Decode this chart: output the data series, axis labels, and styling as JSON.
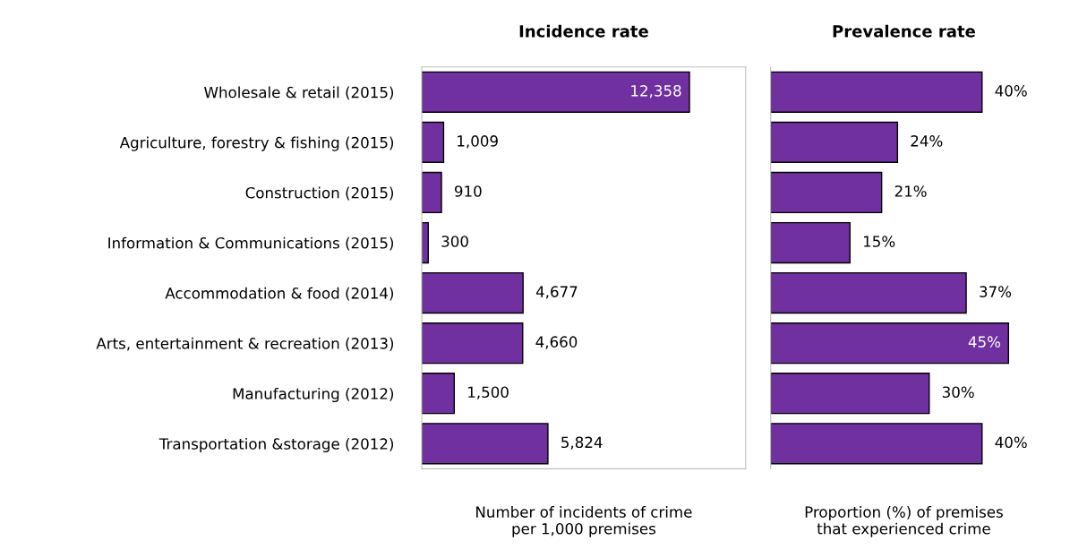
{
  "chart_data": [
    {
      "type": "bar",
      "orientation": "horizontal",
      "title": "Incidence rate",
      "xlabel": "Number of incidents of crime\nper 1,000 premises",
      "categories": [
        "Wholesale & retail (2015)",
        "Agriculture, forestry & fishing (2015)",
        "Construction (2015)",
        "Information & Communications (2015)",
        "Accommodation & food (2014)",
        "Arts, entertainment & recreation (2013)",
        "Manufacturing (2012)",
        "Transportation &storage (2012)"
      ],
      "values": [
        12358,
        1009,
        910,
        300,
        4677,
        4660,
        1500,
        5824
      ],
      "value_labels": [
        "12,358",
        "1,009",
        "910",
        "300",
        "4,677",
        "4,660",
        "1,500",
        "5,824"
      ],
      "color": "#7030a0",
      "tick_labels": "y"
    },
    {
      "type": "bar",
      "orientation": "horizontal",
      "title": "Prevalence rate",
      "xlabel": "Proportion (%) of premises\nthat experienced crime",
      "categories": [
        null,
        null,
        null,
        null,
        null,
        null,
        null,
        null
      ],
      "values": [
        40,
        24,
        21,
        15,
        37,
        45,
        30,
        40
      ],
      "value_labels": [
        "40%",
        "24%",
        "21%",
        "15%",
        "37%",
        "45%",
        "30%",
        "40%"
      ],
      "color": "#7030a0"
    }
  ]
}
